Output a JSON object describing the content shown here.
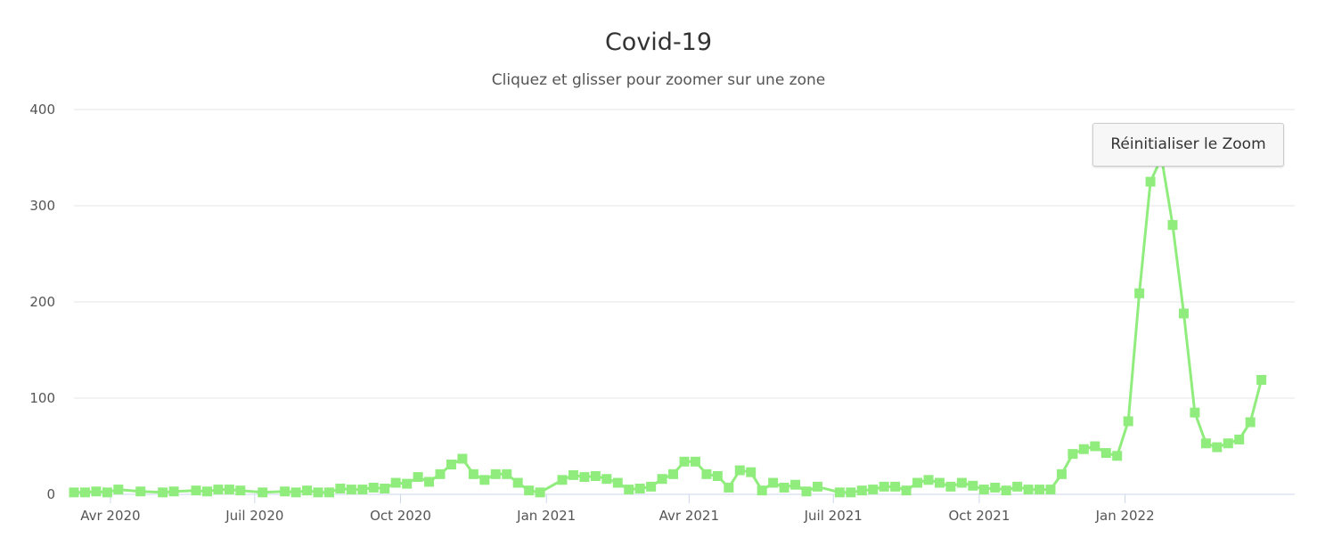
{
  "chart_data": {
    "type": "line",
    "title": "Covid-19",
    "subtitle": "Cliquez et glisser pour zoomer sur une zone",
    "reset_zoom_label": "Réinitialiser le Zoom",
    "xlabel": "",
    "ylabel": "",
    "ylim": [
      0,
      400
    ],
    "yticks": [
      0,
      100,
      200,
      300,
      400
    ],
    "xlim": [
      "2020-03-09",
      "2022-04-18"
    ],
    "xticks": [
      {
        "date": "2020-04-01",
        "label": "Avr 2020"
      },
      {
        "date": "2020-07-01",
        "label": "Juil 2020"
      },
      {
        "date": "2020-10-01",
        "label": "Oct 2020"
      },
      {
        "date": "2021-01-01",
        "label": "Jan 2021"
      },
      {
        "date": "2021-04-01",
        "label": "Avr 2021"
      },
      {
        "date": "2021-07-01",
        "label": "Juil 2021"
      },
      {
        "date": "2021-10-01",
        "label": "Oct 2021"
      },
      {
        "date": "2022-01-01",
        "label": "Jan 2022"
      }
    ],
    "grid": true,
    "legend": "none",
    "colors": {
      "series": "#90ed7d",
      "grid": "#e6e6e6",
      "axis": "#ccd6eb"
    },
    "series": [
      {
        "marker": "square",
        "points": [
          [
            "2020-03-09",
            2
          ],
          [
            "2020-03-16",
            2
          ],
          [
            "2020-03-23",
            3
          ],
          [
            "2020-03-30",
            2
          ],
          [
            "2020-04-06",
            5
          ],
          [
            "2020-04-20",
            3
          ],
          [
            "2020-05-04",
            2
          ],
          [
            "2020-05-11",
            3
          ],
          [
            "2020-05-25",
            4
          ],
          [
            "2020-06-01",
            3
          ],
          [
            "2020-06-08",
            5
          ],
          [
            "2020-06-15",
            5
          ],
          [
            "2020-06-22",
            4
          ],
          [
            "2020-07-06",
            2
          ],
          [
            "2020-07-20",
            3
          ],
          [
            "2020-07-27",
            2
          ],
          [
            "2020-08-03",
            4
          ],
          [
            "2020-08-10",
            2
          ],
          [
            "2020-08-17",
            2
          ],
          [
            "2020-08-24",
            6
          ],
          [
            "2020-08-31",
            5
          ],
          [
            "2020-09-07",
            5
          ],
          [
            "2020-09-14",
            7
          ],
          [
            "2020-09-21",
            6
          ],
          [
            "2020-09-28",
            12
          ],
          [
            "2020-10-05",
            11
          ],
          [
            "2020-10-12",
            18
          ],
          [
            "2020-10-19",
            13
          ],
          [
            "2020-10-26",
            21
          ],
          [
            "2020-11-02",
            31
          ],
          [
            "2020-11-09",
            37
          ],
          [
            "2020-11-16",
            21
          ],
          [
            "2020-11-23",
            15
          ],
          [
            "2020-11-30",
            21
          ],
          [
            "2020-12-07",
            21
          ],
          [
            "2020-12-14",
            12
          ],
          [
            "2020-12-21",
            4
          ],
          [
            "2020-12-28",
            2
          ],
          [
            "2021-01-11",
            15
          ],
          [
            "2021-01-18",
            20
          ],
          [
            "2021-01-25",
            18
          ],
          [
            "2021-02-01",
            19
          ],
          [
            "2021-02-08",
            16
          ],
          [
            "2021-02-15",
            12
          ],
          [
            "2021-02-22",
            5
          ],
          [
            "2021-03-01",
            6
          ],
          [
            "2021-03-08",
            8
          ],
          [
            "2021-03-15",
            16
          ],
          [
            "2021-03-22",
            21
          ],
          [
            "2021-03-29",
            34
          ],
          [
            "2021-04-05",
            34
          ],
          [
            "2021-04-12",
            21
          ],
          [
            "2021-04-19",
            19
          ],
          [
            "2021-04-26",
            7
          ],
          [
            "2021-05-03",
            25
          ],
          [
            "2021-05-10",
            23
          ],
          [
            "2021-05-17",
            4
          ],
          [
            "2021-05-24",
            12
          ],
          [
            "2021-05-31",
            7
          ],
          [
            "2021-06-07",
            10
          ],
          [
            "2021-06-14",
            3
          ],
          [
            "2021-06-21",
            8
          ],
          [
            "2021-07-05",
            2
          ],
          [
            "2021-07-12",
            2
          ],
          [
            "2021-07-19",
            4
          ],
          [
            "2021-07-26",
            5
          ],
          [
            "2021-08-02",
            8
          ],
          [
            "2021-08-09",
            8
          ],
          [
            "2021-08-16",
            4
          ],
          [
            "2021-08-23",
            12
          ],
          [
            "2021-08-30",
            15
          ],
          [
            "2021-09-06",
            12
          ],
          [
            "2021-09-13",
            8
          ],
          [
            "2021-09-20",
            12
          ],
          [
            "2021-09-27",
            9
          ],
          [
            "2021-10-04",
            5
          ],
          [
            "2021-10-11",
            7
          ],
          [
            "2021-10-18",
            4
          ],
          [
            "2021-10-25",
            8
          ],
          [
            "2021-11-01",
            5
          ],
          [
            "2021-11-08",
            5
          ],
          [
            "2021-11-15",
            5
          ],
          [
            "2021-11-22",
            21
          ],
          [
            "2021-11-29",
            42
          ],
          [
            "2021-12-06",
            47
          ],
          [
            "2021-12-13",
            50
          ],
          [
            "2021-12-20",
            43
          ],
          [
            "2021-12-27",
            40
          ],
          [
            "2022-01-03",
            76
          ],
          [
            "2022-01-10",
            209
          ],
          [
            "2022-01-17",
            325
          ],
          [
            "2022-01-24",
            350
          ],
          [
            "2022-01-31",
            280
          ],
          [
            "2022-02-07",
            188
          ],
          [
            "2022-02-14",
            85
          ],
          [
            "2022-02-21",
            53
          ],
          [
            "2022-02-28",
            49
          ],
          [
            "2022-03-07",
            53
          ],
          [
            "2022-03-14",
            57
          ],
          [
            "2022-03-21",
            75
          ],
          [
            "2022-03-28",
            119
          ]
        ]
      }
    ]
  }
}
